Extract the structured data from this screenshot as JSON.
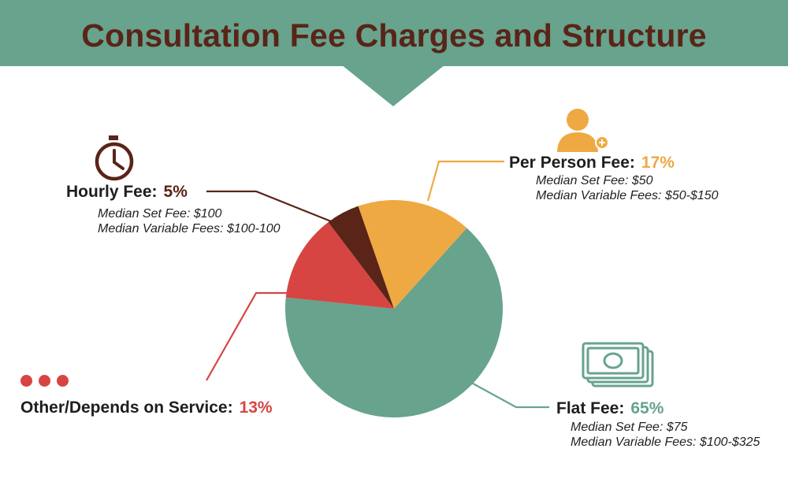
{
  "title": "Consultation Fee Charges and Structure",
  "colors": {
    "banner": "#67a38d",
    "title": "#5a2418",
    "flat": "#67a38d",
    "per_person": "#efa943",
    "hourly": "#5a2418",
    "other": "#d64541"
  },
  "chart_data": {
    "type": "pie",
    "slices": [
      {
        "label": "Flat Fee",
        "value": 65,
        "pct": "65%",
        "color": "#67a38d",
        "notes": [
          "Median Set Fee: $75",
          "Median Variable Fees: $100-$325"
        ],
        "icon": "money-bill-icon"
      },
      {
        "label": "Other/Depends on Service",
        "value": 13,
        "pct": "13%",
        "color": "#d64541",
        "notes": [],
        "icon": "ellipsis-dots-icon"
      },
      {
        "label": "Hourly Fee",
        "value": 5,
        "pct": "5%",
        "color": "#5a2418",
        "notes": [
          "Median Set Fee: $100",
          "Median Variable Fees: $100-100"
        ],
        "icon": "stopwatch-icon"
      },
      {
        "label": "Per Person Fee",
        "value": 17,
        "pct": "17%",
        "color": "#efa943",
        "notes": [
          "Median Set Fee: $50",
          "Median Variable Fees: $50-$150"
        ],
        "icon": "person-add-icon"
      }
    ]
  },
  "labels": {
    "hourly": {
      "name": "Hourly Fee:",
      "pct": "5%",
      "note1": "Median Set Fee: $100",
      "note2": "Median Variable Fees: $100-100"
    },
    "per_person": {
      "name": "Per Person Fee:",
      "pct": "17%",
      "note1": "Median Set Fee: $50",
      "note2": "Median Variable Fees: $50-$150"
    },
    "other": {
      "name": "Other/Depends on Service:",
      "pct": "13%"
    },
    "flat": {
      "name": "Flat Fee:",
      "pct": "65%",
      "note1": "Median Set Fee: $75",
      "note2": "Median Variable Fees: $100-$325"
    }
  }
}
